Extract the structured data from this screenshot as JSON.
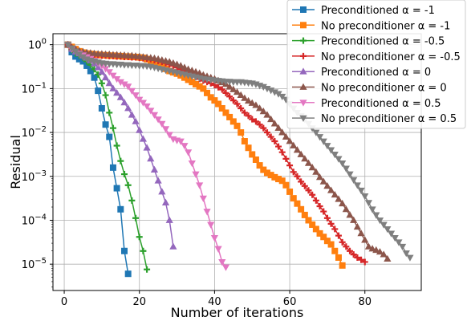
{
  "chart_data": {
    "type": "line",
    "xlabel": "Number of iterations",
    "ylabel": "Residual",
    "xlim": [
      -3,
      95
    ],
    "ylim_log10": [
      -5.6,
      0.25
    ],
    "y_scale": "log",
    "grid": true,
    "legend_placement": "top-right",
    "x_ticks": [
      {
        "value": 0,
        "label": "0"
      },
      {
        "value": 20,
        "label": "20"
      },
      {
        "value": 40,
        "label": "40"
      },
      {
        "value": 60,
        "label": "60"
      },
      {
        "value": 80,
        "label": "80"
      }
    ],
    "y_ticks": [
      {
        "exp": 0,
        "base": "10",
        "sup": "0"
      },
      {
        "exp": -1,
        "base": "10",
        "sup": "−1"
      },
      {
        "exp": -2,
        "base": "10",
        "sup": "−2"
      },
      {
        "exp": -3,
        "base": "10",
        "sup": "−3"
      },
      {
        "exp": -4,
        "base": "10",
        "sup": "−4"
      },
      {
        "exp": -5,
        "base": "10",
        "sup": "−5"
      }
    ],
    "series": [
      {
        "name": "Preconditioned α = -1",
        "legend": "Preconditioned α = -1",
        "color": "#1f77b4",
        "marker": "square",
        "x": [
          1,
          2,
          3,
          4,
          5,
          6,
          7,
          8,
          9,
          10,
          11,
          12,
          13,
          14,
          15,
          16,
          17
        ],
        "y_log10": [
          0,
          -0.17,
          -0.27,
          -0.33,
          -0.38,
          -0.48,
          -0.6,
          -0.75,
          -1.05,
          -1.45,
          -1.82,
          -2.1,
          -2.8,
          -3.27,
          -3.75,
          -4.7,
          -5.22
        ]
      },
      {
        "name": "No preconditioner α = -1",
        "legend": "No preconditioner α = -1",
        "color": "#ff7f0e",
        "marker": "square",
        "x": [
          1,
          2,
          3,
          4,
          5,
          6,
          7,
          8,
          9,
          10,
          11,
          12,
          13,
          14,
          15,
          16,
          17,
          18,
          19,
          20,
          21,
          22,
          23,
          24,
          25,
          26,
          27,
          28,
          29,
          30,
          31,
          32,
          33,
          34,
          35,
          36,
          37,
          38,
          39,
          40,
          41,
          42,
          43,
          44,
          45,
          46,
          47,
          48,
          49,
          50,
          51,
          52,
          53,
          54,
          55,
          56,
          57,
          58,
          59,
          60,
          61,
          62,
          63,
          64,
          65,
          66,
          67,
          68,
          69,
          70,
          71,
          72,
          73,
          74
        ],
        "y_log10": [
          0,
          -0.05,
          -0.1,
          -0.15,
          -0.18,
          -0.2,
          -0.21,
          -0.22,
          -0.23,
          -0.24,
          -0.24,
          -0.25,
          -0.25,
          -0.26,
          -0.26,
          -0.27,
          -0.27,
          -0.28,
          -0.28,
          -0.29,
          -0.3,
          -0.33,
          -0.37,
          -0.4,
          -0.45,
          -0.5,
          -0.55,
          -0.6,
          -0.63,
          -0.66,
          -0.7,
          -0.75,
          -0.8,
          -0.85,
          -0.9,
          -0.95,
          -1.0,
          -1.1,
          -1.2,
          -1.27,
          -1.35,
          -1.45,
          -1.55,
          -1.65,
          -1.75,
          -1.85,
          -2.0,
          -2.2,
          -2.35,
          -2.5,
          -2.62,
          -2.75,
          -2.85,
          -2.92,
          -2.97,
          -3.02,
          -3.06,
          -3.1,
          -3.2,
          -3.35,
          -3.5,
          -3.62,
          -3.75,
          -3.88,
          -4.0,
          -4.1,
          -4.2,
          -4.3,
          -4.38,
          -4.47,
          -4.55,
          -4.7,
          -4.85,
          -5.03
        ]
      },
      {
        "name": "Preconditioned α = -0.5",
        "legend": "Preconditioned α = -0.5",
        "color": "#2ca02c",
        "marker": "plus",
        "x": [
          1,
          2,
          3,
          4,
          5,
          6,
          7,
          8,
          9,
          10,
          11,
          12,
          13,
          14,
          15,
          16,
          17,
          18,
          19,
          20,
          21,
          22
        ],
        "y_log10": [
          0,
          -0.12,
          -0.2,
          -0.25,
          -0.3,
          -0.38,
          -0.46,
          -0.56,
          -0.68,
          -0.88,
          -1.15,
          -1.55,
          -1.9,
          -2.3,
          -2.65,
          -2.95,
          -3.2,
          -3.55,
          -3.95,
          -4.38,
          -4.7,
          -5.12
        ]
      },
      {
        "name": "No preconditioner α = -0.5",
        "legend": "No preconditioner α = -0.5",
        "color": "#d62728",
        "marker": "plus",
        "x": [
          1,
          2,
          3,
          4,
          5,
          6,
          7,
          8,
          9,
          10,
          11,
          12,
          13,
          14,
          15,
          16,
          17,
          18,
          19,
          20,
          21,
          22,
          23,
          24,
          25,
          26,
          27,
          28,
          29,
          30,
          31,
          32,
          33,
          34,
          35,
          36,
          37,
          38,
          39,
          40,
          41,
          42,
          43,
          44,
          45,
          46,
          47,
          48,
          49,
          50,
          51,
          52,
          53,
          54,
          55,
          56,
          57,
          58,
          59,
          60,
          61,
          62,
          63,
          64,
          65,
          66,
          67,
          68,
          69,
          70,
          71,
          72,
          73,
          74,
          75,
          76,
          77,
          78,
          79,
          80
        ],
        "y_log10": [
          0,
          -0.07,
          -0.12,
          -0.16,
          -0.19,
          -0.21,
          -0.22,
          -0.23,
          -0.24,
          -0.25,
          -0.25,
          -0.26,
          -0.26,
          -0.27,
          -0.27,
          -0.28,
          -0.28,
          -0.29,
          -0.29,
          -0.3,
          -0.31,
          -0.32,
          -0.33,
          -0.35,
          -0.37,
          -0.39,
          -0.42,
          -0.45,
          -0.48,
          -0.52,
          -0.56,
          -0.6,
          -0.64,
          -0.68,
          -0.73,
          -0.78,
          -0.82,
          -0.85,
          -0.88,
          -0.92,
          -0.97,
          -1.02,
          -1.1,
          -1.18,
          -1.27,
          -1.35,
          -1.45,
          -1.55,
          -1.62,
          -1.7,
          -1.75,
          -1.82,
          -1.9,
          -2.0,
          -2.1,
          -2.2,
          -2.32,
          -2.45,
          -2.6,
          -2.75,
          -2.9,
          -3.0,
          -3.12,
          -3.22,
          -3.32,
          -3.42,
          -3.55,
          -3.68,
          -3.8,
          -3.95,
          -4.08,
          -4.2,
          -4.35,
          -4.5,
          -4.6,
          -4.7,
          -4.78,
          -4.85,
          -4.9,
          -4.95
        ]
      },
      {
        "name": "Preconditioned α = 0",
        "legend": "Preconditioned α = 0",
        "color": "#9467bd",
        "marker": "triangle-up",
        "x": [
          1,
          2,
          3,
          4,
          5,
          6,
          7,
          8,
          9,
          10,
          11,
          12,
          13,
          14,
          15,
          16,
          17,
          18,
          19,
          20,
          21,
          22,
          23,
          24,
          25,
          26,
          27,
          28,
          29
        ],
        "y_log10": [
          0,
          -0.1,
          -0.16,
          -0.2,
          -0.25,
          -0.3,
          -0.36,
          -0.43,
          -0.52,
          -0.62,
          -0.75,
          -0.88,
          -1.0,
          -1.1,
          -1.2,
          -1.32,
          -1.45,
          -1.6,
          -1.75,
          -1.95,
          -2.15,
          -2.35,
          -2.6,
          -2.85,
          -3.1,
          -3.35,
          -3.6,
          -4.0,
          -4.6
        ]
      },
      {
        "name": "No preconditioner α = 0",
        "legend": "No preconditioner α = 0",
        "color": "#8c564b",
        "marker": "triangle-up",
        "x": [
          1,
          2,
          3,
          4,
          5,
          6,
          7,
          8,
          9,
          10,
          11,
          12,
          13,
          14,
          15,
          16,
          17,
          18,
          19,
          20,
          21,
          22,
          23,
          24,
          25,
          26,
          27,
          28,
          29,
          30,
          31,
          32,
          33,
          34,
          35,
          36,
          37,
          38,
          39,
          40,
          41,
          42,
          43,
          44,
          45,
          46,
          47,
          48,
          49,
          50,
          51,
          52,
          53,
          54,
          55,
          56,
          57,
          58,
          59,
          60,
          61,
          62,
          63,
          64,
          65,
          66,
          67,
          68,
          69,
          70,
          71,
          72,
          73,
          74,
          75,
          76,
          77,
          78,
          79,
          80,
          81,
          82,
          83,
          84,
          85,
          86
        ],
        "y_log10": [
          0,
          -0.06,
          -0.1,
          -0.14,
          -0.16,
          -0.18,
          -0.19,
          -0.2,
          -0.21,
          -0.21,
          -0.22,
          -0.22,
          -0.23,
          -0.23,
          -0.24,
          -0.24,
          -0.25,
          -0.25,
          -0.26,
          -0.27,
          -0.28,
          -0.29,
          -0.3,
          -0.31,
          -0.33,
          -0.35,
          -0.37,
          -0.39,
          -0.42,
          -0.45,
          -0.48,
          -0.52,
          -0.56,
          -0.59,
          -0.62,
          -0.65,
          -0.69,
          -0.72,
          -0.75,
          -0.78,
          -0.82,
          -0.86,
          -0.9,
          -0.96,
          -1.02,
          -1.08,
          -1.15,
          -1.22,
          -1.28,
          -1.33,
          -1.38,
          -1.45,
          -1.52,
          -1.6,
          -1.7,
          -1.8,
          -1.9,
          -2.0,
          -2.1,
          -2.2,
          -2.3,
          -2.4,
          -2.5,
          -2.6,
          -2.7,
          -2.8,
          -2.9,
          -3.02,
          -3.12,
          -3.22,
          -3.32,
          -3.42,
          -3.52,
          -3.62,
          -3.75,
          -3.88,
          -4.0,
          -4.15,
          -4.3,
          -4.45,
          -4.6,
          -4.65,
          -4.68,
          -4.72,
          -4.78,
          -4.88
        ]
      },
      {
        "name": "Preconditioned α = 0.5",
        "legend": "Preconditioned α = 0.5",
        "color": "#e377c2",
        "marker": "triangle-down",
        "x": [
          1,
          2,
          3,
          4,
          5,
          6,
          7,
          8,
          9,
          10,
          11,
          12,
          13,
          14,
          15,
          16,
          17,
          18,
          19,
          20,
          21,
          22,
          23,
          24,
          25,
          26,
          27,
          28,
          29,
          30,
          31,
          32,
          33,
          34,
          35,
          36,
          37,
          38,
          39,
          40,
          41,
          42,
          43
        ],
        "y_log10": [
          0,
          -0.1,
          -0.15,
          -0.2,
          -0.24,
          -0.28,
          -0.32,
          -0.36,
          -0.42,
          -0.48,
          -0.55,
          -0.62,
          -0.7,
          -0.78,
          -0.85,
          -0.9,
          -0.95,
          -1.05,
          -1.15,
          -1.25,
          -1.32,
          -1.4,
          -1.5,
          -1.6,
          -1.7,
          -1.8,
          -1.92,
          -2.05,
          -2.15,
          -2.18,
          -2.2,
          -2.3,
          -2.45,
          -2.7,
          -2.95,
          -3.2,
          -3.5,
          -3.8,
          -4.1,
          -4.4,
          -4.65,
          -4.95,
          -5.07
        ]
      },
      {
        "name": "No preconditioner α = 0.5",
        "legend": "No preconditioner α = 0.5",
        "color": "#7f7f7f",
        "marker": "triangle-down",
        "x": [
          1,
          2,
          3,
          4,
          5,
          6,
          7,
          8,
          9,
          10,
          11,
          12,
          13,
          14,
          15,
          16,
          17,
          18,
          19,
          20,
          21,
          22,
          23,
          24,
          25,
          26,
          27,
          28,
          29,
          30,
          31,
          32,
          33,
          34,
          35,
          36,
          37,
          38,
          39,
          40,
          41,
          42,
          43,
          44,
          45,
          46,
          47,
          48,
          49,
          50,
          51,
          52,
          53,
          54,
          55,
          56,
          57,
          58,
          59,
          60,
          61,
          62,
          63,
          64,
          65,
          66,
          67,
          68,
          69,
          70,
          71,
          72,
          73,
          74,
          75,
          76,
          77,
          78,
          79,
          80,
          81,
          82,
          83,
          84,
          85,
          86,
          87,
          88,
          89,
          90,
          91,
          92
        ],
        "y_log10": [
          0,
          -0.08,
          -0.15,
          -0.22,
          -0.28,
          -0.33,
          -0.36,
          -0.38,
          -0.4,
          -0.42,
          -0.43,
          -0.44,
          -0.44,
          -0.45,
          -0.45,
          -0.46,
          -0.46,
          -0.47,
          -0.47,
          -0.48,
          -0.48,
          -0.49,
          -0.5,
          -0.52,
          -0.54,
          -0.56,
          -0.58,
          -0.6,
          -0.62,
          -0.64,
          -0.66,
          -0.68,
          -0.7,
          -0.72,
          -0.74,
          -0.76,
          -0.78,
          -0.79,
          -0.8,
          -0.81,
          -0.82,
          -0.83,
          -0.84,
          -0.84,
          -0.85,
          -0.85,
          -0.85,
          -0.86,
          -0.87,
          -0.88,
          -0.9,
          -0.93,
          -0.96,
          -1.0,
          -1.04,
          -1.08,
          -1.12,
          -1.18,
          -1.25,
          -1.35,
          -1.45,
          -1.55,
          -1.62,
          -1.7,
          -1.8,
          -1.9,
          -2.0,
          -2.1,
          -2.2,
          -2.3,
          -2.4,
          -2.5,
          -2.6,
          -2.7,
          -2.82,
          -2.95,
          -3.08,
          -3.2,
          -3.32,
          -3.45,
          -3.6,
          -3.75,
          -3.88,
          -4.0,
          -4.1,
          -4.2,
          -4.3,
          -4.4,
          -4.5,
          -4.6,
          -4.75,
          -4.85
        ]
      }
    ]
  }
}
